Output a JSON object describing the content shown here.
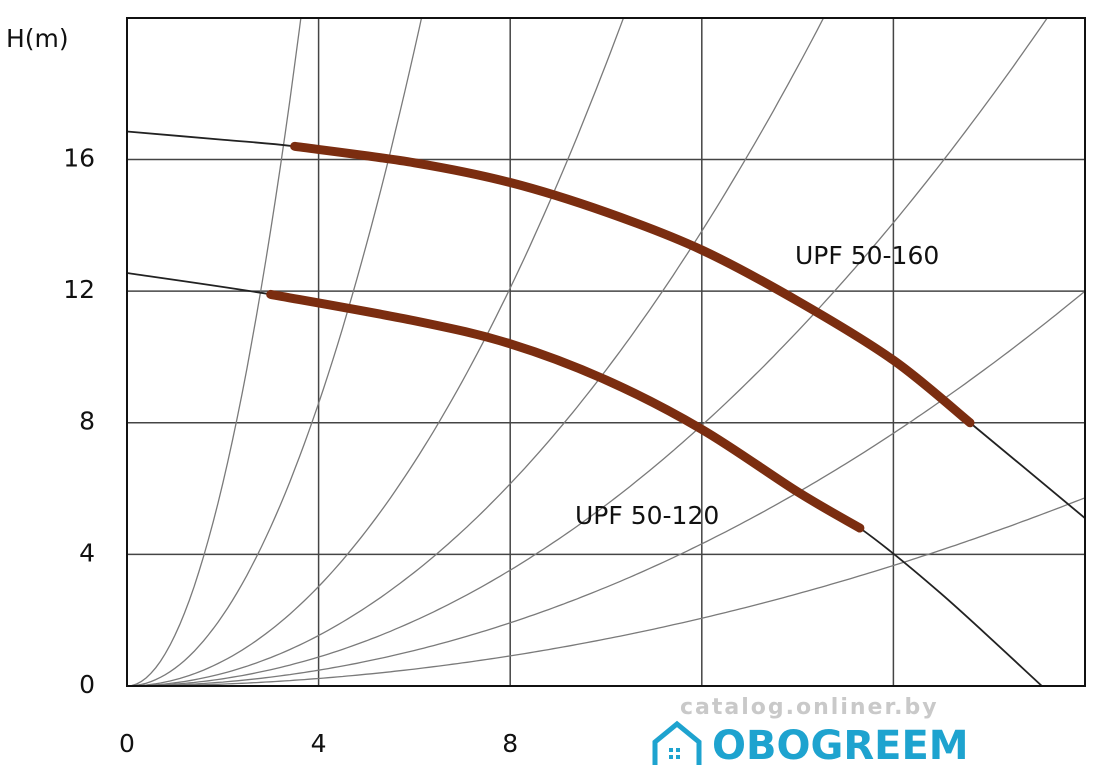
{
  "chart_data": {
    "type": "line",
    "y_label": "H(m)",
    "xlim": [
      0,
      20
    ],
    "ylim": [
      0,
      20.3
    ],
    "xticks": [
      0,
      4,
      8
    ],
    "yticks": [
      0,
      4,
      8,
      12,
      16
    ],
    "xgrid": [
      0,
      4,
      8,
      12,
      16,
      20
    ],
    "grid": true,
    "series": [
      {
        "name": "UPF 50-160",
        "color": "#7b2d10",
        "x": [
          3.5,
          6,
          8,
          10,
          12,
          14,
          16,
          17.6
        ],
        "values": [
          16.4,
          15.9,
          15.3,
          14.4,
          13.25,
          11.7,
          9.9,
          8.0
        ]
      },
      {
        "name": "UPF 50-120",
        "color": "#7b2d10",
        "x": [
          3,
          6,
          8,
          10,
          12,
          14,
          15.3
        ],
        "values": [
          11.9,
          11.1,
          10.4,
          9.3,
          7.8,
          5.9,
          4.8
        ]
      }
    ],
    "curves": [
      {
        "color": "#222222",
        "x": [
          0,
          2,
          3.5,
          6,
          8,
          10,
          12,
          14,
          16,
          17.6,
          20
        ],
        "values": [
          16.85,
          16.6,
          16.4,
          15.9,
          15.3,
          14.4,
          13.25,
          11.7,
          9.9,
          8.0,
          5.1
        ]
      },
      {
        "color": "#222222",
        "x": [
          0,
          3,
          6,
          8,
          10,
          12,
          14,
          15.3,
          17,
          19.1
        ],
        "values": [
          12.55,
          11.9,
          11.1,
          10.4,
          9.3,
          7.8,
          5.9,
          4.8,
          2.8,
          0
        ]
      }
    ],
    "system_curves": {
      "color": "#7a7a7a",
      "k": [
        1.54,
        0.537,
        0.189,
        0.096,
        0.055,
        0.03,
        0.0143
      ]
    }
  },
  "watermark": {
    "site": "catalog.onliner.by",
    "logo": "OBOGREEM"
  }
}
